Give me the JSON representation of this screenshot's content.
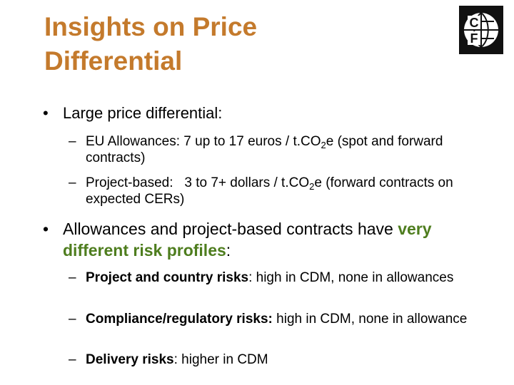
{
  "title": [
    "Insights on Price",
    "Differential"
  ],
  "logo": {
    "letters": [
      "C",
      "F"
    ]
  },
  "bullets": [
    {
      "parts": [
        "Large price differential:"
      ],
      "subs": [
        {
          "parts": [
            "EU Allowances: 7 up to 17 euros / t.CO",
            "2",
            "e (spot and forward contracts)"
          ]
        },
        {
          "parts": [
            "Project-based:   3 to 7+ dollars / t.CO",
            "2",
            "e (forward contracts on expected CERs)"
          ]
        }
      ]
    },
    {
      "parts": [
        "Allowances and project-based contracts have ",
        "very different risk profiles",
        ":"
      ],
      "subs": [
        {
          "parts": [
            "Project and country risks",
            ": high in CDM, none in allowances"
          ]
        },
        {
          "parts": [
            "Compliance/regulatory risks:",
            " high in CDM, none in allowance"
          ]
        },
        {
          "parts": [
            "Delivery risks",
            ": higher in CDM"
          ]
        }
      ]
    }
  ]
}
